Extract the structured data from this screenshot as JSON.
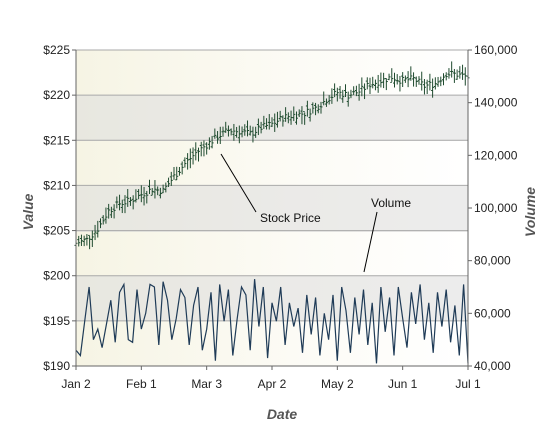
{
  "chart_data": {
    "type": "line",
    "xlabel": "Date",
    "ylabel": "Value",
    "y2label": "Volume",
    "x_ticks": [
      "Jan 2",
      "Feb 1",
      "Mar 3",
      "Apr 2",
      "May 2",
      "Jun 1",
      "Jul 1"
    ],
    "y_ticks": [
      "$190",
      "$195",
      "$200",
      "$205",
      "$210",
      "$215",
      "$220",
      "$225"
    ],
    "y2_ticks": [
      "40,000",
      "60,000",
      "80,000",
      "100,000",
      "120,000",
      "140,000",
      "160,000"
    ],
    "ylim": [
      190,
      225
    ],
    "y2lim": [
      40000,
      160000
    ],
    "x_range_days": [
      0,
      180
    ],
    "grid": true,
    "annotations": [
      {
        "text": "Stock Price",
        "target": "price"
      },
      {
        "text": "Volume",
        "target": "volume"
      }
    ],
    "series": [
      {
        "axis": "left",
        "style": "hloc",
        "points": [
          [
            0,
            203.6
          ],
          [
            5,
            204.0
          ],
          [
            10,
            205.2
          ],
          [
            15,
            207.2
          ],
          [
            20,
            208.0
          ],
          [
            25,
            208.3
          ],
          [
            30,
            209.0
          ],
          [
            35,
            209.6
          ],
          [
            40,
            209.4
          ],
          [
            45,
            211.0
          ],
          [
            50,
            212.4
          ],
          [
            55,
            213.6
          ],
          [
            60,
            214.5
          ],
          [
            65,
            215.4
          ],
          [
            70,
            216.1
          ],
          [
            75,
            216.0
          ],
          [
            80,
            215.7
          ],
          [
            85,
            216.4
          ],
          [
            90,
            216.8
          ],
          [
            95,
            217.5
          ],
          [
            100,
            217.8
          ],
          [
            105,
            218.0
          ],
          [
            110,
            218.6
          ],
          [
            115,
            219.5
          ],
          [
            120,
            220.3
          ],
          [
            125,
            220.0
          ],
          [
            130,
            220.4
          ],
          [
            135,
            221.2
          ],
          [
            140,
            221.6
          ],
          [
            145,
            222.0
          ],
          [
            150,
            221.6
          ],
          [
            155,
            221.8
          ],
          [
            160,
            221.0
          ],
          [
            165,
            221.3
          ],
          [
            170,
            222.4
          ],
          [
            175,
            222.3
          ],
          [
            180,
            222.0
          ]
        ]
      },
      {
        "axis": "right",
        "style": "line",
        "points": [
          [
            0,
            46000
          ],
          [
            2,
            44000
          ],
          [
            4,
            57000
          ],
          [
            6,
            70000
          ],
          [
            8,
            50000
          ],
          [
            10,
            54000
          ],
          [
            12,
            47000
          ],
          [
            14,
            56000
          ],
          [
            16,
            65000
          ],
          [
            18,
            49000
          ],
          [
            20,
            68000
          ],
          [
            22,
            71000
          ],
          [
            24,
            50000
          ],
          [
            26,
            49000
          ],
          [
            28,
            69000
          ],
          [
            30,
            54000
          ],
          [
            32,
            60000
          ],
          [
            34,
            71000
          ],
          [
            36,
            70000
          ],
          [
            38,
            48000
          ],
          [
            40,
            72000
          ],
          [
            42,
            65000
          ],
          [
            44,
            50000
          ],
          [
            46,
            58000
          ],
          [
            48,
            69000
          ],
          [
            50,
            66000
          ],
          [
            52,
            48000
          ],
          [
            54,
            63000
          ],
          [
            56,
            70000
          ],
          [
            58,
            46000
          ],
          [
            60,
            54000
          ],
          [
            62,
            68000
          ],
          [
            64,
            42000
          ],
          [
            66,
            71000
          ],
          [
            68,
            57000
          ],
          [
            70,
            69000
          ],
          [
            72,
            44000
          ],
          [
            74,
            58000
          ],
          [
            76,
            70000
          ],
          [
            78,
            67000
          ],
          [
            80,
            46000
          ],
          [
            82,
            73000
          ],
          [
            84,
            55000
          ],
          [
            86,
            70000
          ],
          [
            88,
            43000
          ],
          [
            90,
            64000
          ],
          [
            92,
            57000
          ],
          [
            94,
            70000
          ],
          [
            96,
            48000
          ],
          [
            98,
            64000
          ],
          [
            100,
            55000
          ],
          [
            102,
            62000
          ],
          [
            104,
            45000
          ],
          [
            106,
            67000
          ],
          [
            108,
            52000
          ],
          [
            110,
            66000
          ],
          [
            112,
            44000
          ],
          [
            114,
            60000
          ],
          [
            116,
            50000
          ],
          [
            118,
            67000
          ],
          [
            120,
            42000
          ],
          [
            122,
            70000
          ],
          [
            124,
            61000
          ],
          [
            126,
            45000
          ],
          [
            128,
            66000
          ],
          [
            130,
            52000
          ],
          [
            132,
            69000
          ],
          [
            134,
            48000
          ],
          [
            136,
            64000
          ],
          [
            138,
            41000
          ],
          [
            140,
            70000
          ],
          [
            142,
            53000
          ],
          [
            144,
            66000
          ],
          [
            146,
            44000
          ],
          [
            148,
            70000
          ],
          [
            150,
            58000
          ],
          [
            152,
            47000
          ],
          [
            154,
            68000
          ],
          [
            156,
            56000
          ],
          [
            158,
            71000
          ],
          [
            160,
            50000
          ],
          [
            162,
            64000
          ],
          [
            164,
            45000
          ],
          [
            166,
            68000
          ],
          [
            168,
            55000
          ],
          [
            170,
            69000
          ],
          [
            172,
            49000
          ],
          [
            174,
            63000
          ],
          [
            176,
            44000
          ],
          [
            178,
            71000
          ],
          [
            180,
            41000
          ]
        ]
      }
    ]
  }
}
